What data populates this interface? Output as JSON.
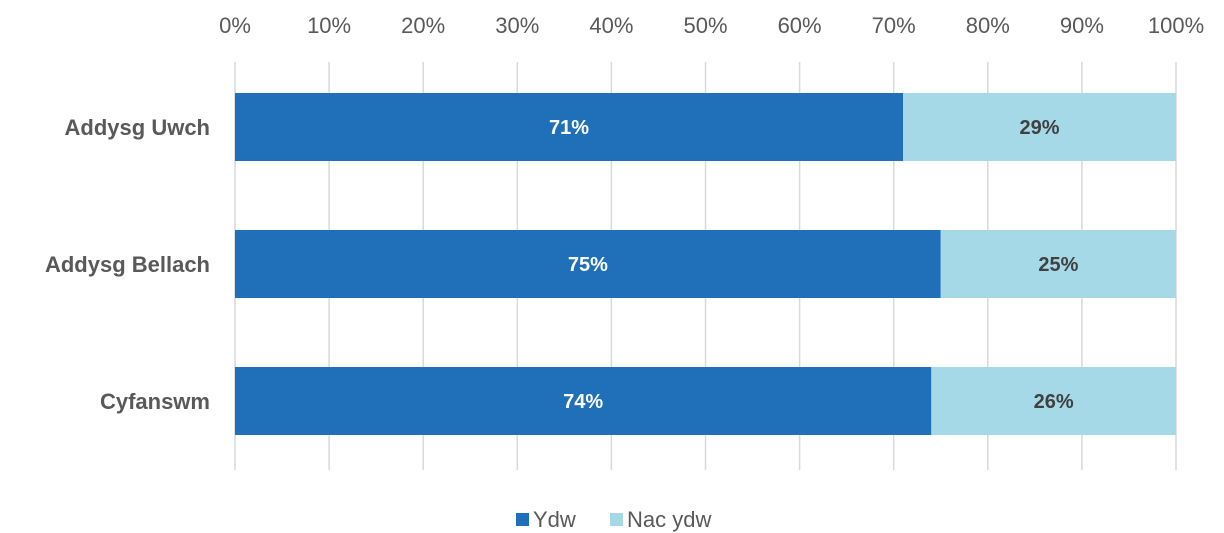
{
  "chart_data": {
    "type": "bar",
    "orientation": "horizontal",
    "stacked": true,
    "categories": [
      "Addysg Uwch",
      "Addysg Bellach",
      "Cyfanswm"
    ],
    "series": [
      {
        "name": "Ydw",
        "values": [
          71,
          75,
          74
        ],
        "color": "#1f70b8",
        "label_color": "#ffffff",
        "labels": [
          "71%",
          "75%",
          "74%"
        ]
      },
      {
        "name": "Nac ydw",
        "values": [
          29,
          25,
          26
        ],
        "color": "#a6d9e8",
        "label_color": "#404040",
        "labels": [
          "29%",
          "25%",
          "26%"
        ]
      }
    ],
    "x_ticks": [
      "0%",
      "10%",
      "20%",
      "30%",
      "40%",
      "50%",
      "60%",
      "70%",
      "80%",
      "90%",
      "100%"
    ],
    "xlim": [
      0,
      100
    ],
    "axis_position": "top",
    "grid": true,
    "legend_position": "bottom"
  }
}
